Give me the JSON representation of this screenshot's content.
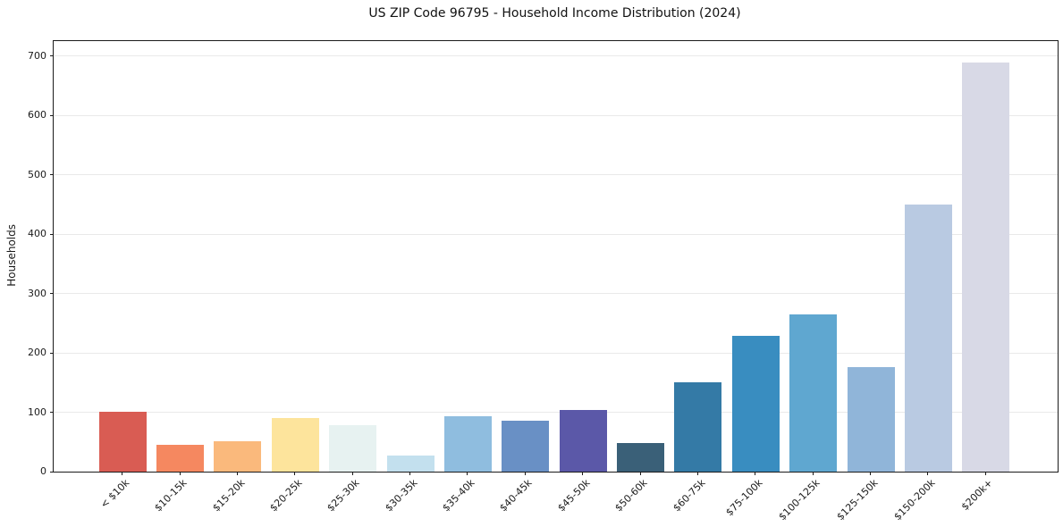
{
  "title": "US ZIP Code 96795 - Household Income Distribution (2024)",
  "chart_data": {
    "type": "bar",
    "title": "US ZIP Code 96795 - Household Income Distribution (2024)",
    "categories": [
      "< $10k",
      "$10-15k",
      "$15-20k",
      "$20-25k",
      "$25-30k",
      "$30-35k",
      "$35-40k",
      "$40-45k",
      "$45-50k",
      "$50-60k",
      "$60-75k",
      "$75-100k",
      "$100-125k",
      "$125-150k",
      "$150-200k",
      "$200k+"
    ],
    "values": [
      101,
      45,
      51,
      91,
      78,
      27,
      93,
      86,
      104,
      48,
      150,
      228,
      265,
      176,
      449,
      688
    ],
    "bar_colors": [
      "#d95c53",
      "#f58860",
      "#fab97c",
      "#fde49c",
      "#e7f2f1",
      "#c3e0ee",
      "#8fbddf",
      "#6990c5",
      "#5b58a8",
      "#3a6078",
      "#347aa6",
      "#398dc0",
      "#5fa7d0",
      "#90b5d9",
      "#b9cae2",
      "#d8d9e6"
    ],
    "xlabel": "",
    "ylabel": "Households",
    "ylim": [
      0,
      700
    ],
    "yticks": [
      0,
      100,
      200,
      300,
      400,
      500,
      600,
      700
    ],
    "xtick_rotation": 45,
    "grid": "horizontal-only",
    "grid_color": "#e9e9e9",
    "legend": "none",
    "background": "#ffffff"
  }
}
